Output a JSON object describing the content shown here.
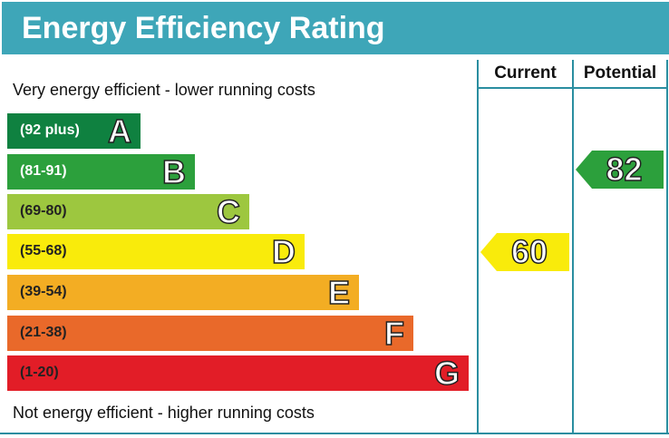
{
  "title": "Energy Efficiency Rating",
  "top_note": "Very energy efficient - lower running costs",
  "bottom_note": "Not energy efficient - higher running costs",
  "columns": [
    "Current",
    "Potential"
  ],
  "chart_data": {
    "type": "bar",
    "title": "Energy Efficiency Rating",
    "categories": [
      "A",
      "B",
      "C",
      "D",
      "E",
      "F",
      "G"
    ],
    "ranges": [
      "(92 plus)",
      "(81-91)",
      "(69-80)",
      "(55-68)",
      "(39-54)",
      "(21-38)",
      "(1-20)"
    ],
    "colors": [
      "#0f8140",
      "#2ca03c",
      "#9dc73f",
      "#f9eb0b",
      "#f3ad23",
      "#e9692a",
      "#e21d27"
    ],
    "current": {
      "value": "60",
      "band": "D",
      "color": "#f9eb0b"
    },
    "potential": {
      "value": "82",
      "band": "B",
      "color": "#2ca03c"
    }
  }
}
